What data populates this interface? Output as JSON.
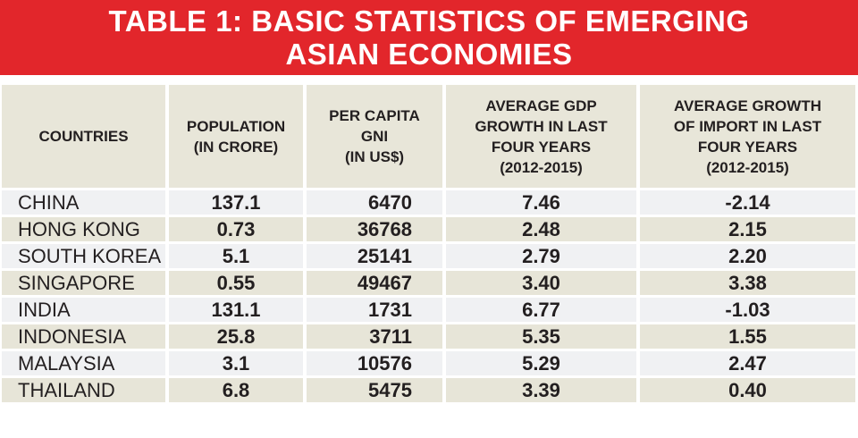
{
  "title": {
    "line1": "TABLE 1: BASIC STATISTICS OF EMERGING",
    "line2": "ASIAN ECONOMIES"
  },
  "table": {
    "headers": [
      [
        "COUNTRIES"
      ],
      [
        "POPULATION",
        "(IN CRORE)"
      ],
      [
        "PER CAPITA",
        "GNI",
        "(IN US$)"
      ],
      [
        "AVERAGE GDP",
        "GROWTH IN LAST",
        "FOUR YEARS",
        "(2012-2015)"
      ],
      [
        "AVERAGE GROWTH",
        "OF IMPORT IN LAST",
        "FOUR YEARS",
        "(2012-2015)"
      ]
    ],
    "rows": [
      [
        "CHINA",
        "137.1",
        "6470",
        "7.46",
        "-2.14"
      ],
      [
        "HONG KONG",
        "0.73",
        "36768",
        "2.48",
        "2.15"
      ],
      [
        "SOUTH KOREA",
        "5.1",
        "25141",
        "2.79",
        "2.20"
      ],
      [
        "SINGAPORE",
        "0.55",
        "49467",
        "3.40",
        "3.38"
      ],
      [
        "INDIA",
        "131.1",
        "1731",
        "6.77",
        "-1.03"
      ],
      [
        "INDONESIA",
        "25.8",
        "3711",
        "5.35",
        "1.55"
      ],
      [
        "MALAYSIA",
        "3.1",
        "10576",
        "5.29",
        "2.47"
      ],
      [
        "THAILAND",
        "6.8",
        "5475",
        "3.39",
        "0.40"
      ]
    ]
  },
  "colors": {
    "title_background": "#e2262b",
    "header_background": "#e8e6d9",
    "row_light": "#f0f1f3",
    "row_tan": "#e7e5d8",
    "text": "#231f20"
  }
}
